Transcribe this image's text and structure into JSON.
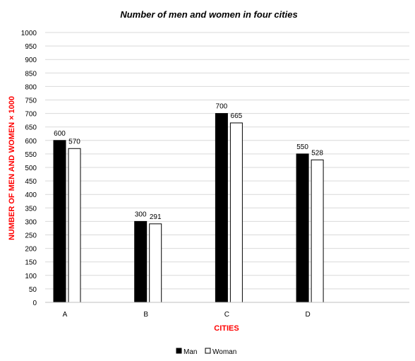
{
  "chart_data": {
    "type": "bar",
    "title": "Number of men and women in four cities",
    "xlabel": "CITIES",
    "ylabel": "NUMBER OF MEN AND WOMEN × 1000",
    "categories": [
      "A",
      "B",
      "C",
      "D"
    ],
    "series": [
      {
        "name": "Man",
        "values": [
          600,
          300,
          700,
          550
        ],
        "color": "#000000"
      },
      {
        "name": "Woman",
        "values": [
          570,
          291,
          665,
          528
        ],
        "color": "#ffffff"
      }
    ],
    "ylim": [
      0,
      1000
    ],
    "yticks": [
      0,
      50,
      100,
      150,
      200,
      250,
      300,
      350,
      400,
      450,
      500,
      550,
      600,
      650,
      700,
      750,
      800,
      850,
      900,
      950,
      1000
    ],
    "grid": true,
    "legend_position": "bottom",
    "label_color": "#ff0000"
  }
}
